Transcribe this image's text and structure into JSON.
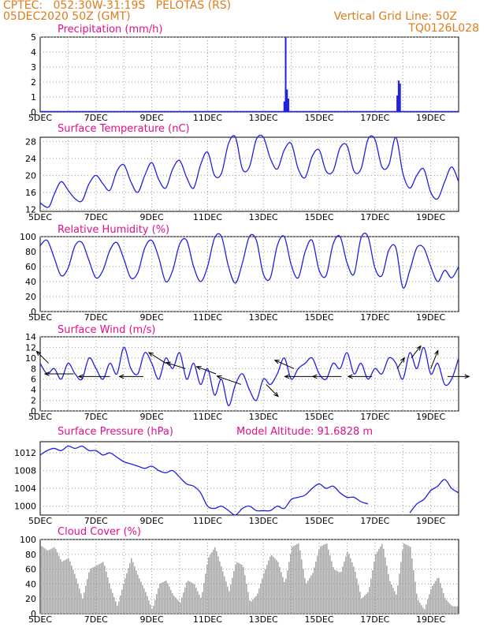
{
  "header": {
    "line1": "CPTEC:   052:30W-31:19S   PELOTAS (RS)",
    "line2": "05DEC2020 50Z (GMT)",
    "grid_label": "Vertical Grid Line: 50Z",
    "code": "TQ0126L028"
  },
  "x_ticks": [
    "5DEC",
    "7DEC",
    "9DEC",
    "11DEC",
    "13DEC",
    "15DEC",
    "17DEC",
    "19DEC"
  ],
  "colors": {
    "title": "#e0108a",
    "header": "#e07b1a",
    "line": "#2020e0",
    "bar": "#2020e0",
    "cloud": "#a9a9a9"
  },
  "chart_data": [
    {
      "id": "precip",
      "type": "bar",
      "title": "Precipitation (mm/h)",
      "ylim": [
        0,
        5
      ],
      "yticks": [
        0,
        1,
        2,
        3,
        4,
        5
      ],
      "x": [
        13.75,
        13.8,
        13.85,
        13.9,
        17.8,
        17.85,
        17.9
      ],
      "values": [
        0.7,
        5.0,
        1.5,
        0.9,
        1.1,
        2.1,
        1.9
      ]
    },
    {
      "id": "temp",
      "type": "line",
      "title": "Surface Temperature (nC)",
      "ylim": [
        11.5,
        29
      ],
      "yticks": [
        12,
        16,
        20,
        24,
        28
      ],
      "x": [
        5.0,
        5.3,
        5.5,
        5.75,
        6.0,
        6.25,
        6.5,
        6.75,
        7.0,
        7.25,
        7.5,
        7.75,
        8.0,
        8.25,
        8.5,
        8.75,
        9.0,
        9.25,
        9.5,
        9.75,
        10.0,
        10.25,
        10.5,
        10.75,
        11.0,
        11.25,
        11.5,
        11.75,
        12.0,
        12.25,
        12.5,
        12.75,
        13.0,
        13.25,
        13.5,
        13.75,
        14.0,
        14.25,
        14.5,
        14.75,
        15.0,
        15.25,
        15.5,
        15.75,
        16.0,
        16.25,
        16.5,
        16.75,
        17.0,
        17.25,
        17.5,
        17.75,
        18.0,
        18.25,
        18.5,
        18.75,
        19.0,
        19.25,
        19.5,
        19.75,
        20.0
      ],
      "values": [
        13.5,
        12.5,
        15.5,
        18.5,
        16.5,
        14.5,
        14.0,
        18.0,
        20.0,
        18.0,
        16.5,
        21.0,
        22.5,
        18.5,
        16.0,
        20.0,
        23.0,
        19.0,
        17.0,
        21.5,
        23.5,
        19.5,
        17.0,
        22.5,
        25.5,
        20.0,
        20.5,
        27.5,
        29.0,
        21.5,
        22.0,
        28.5,
        29.0,
        24.0,
        21.5,
        26.0,
        27.5,
        21.5,
        19.5,
        24.5,
        26.0,
        21.0,
        21.0,
        26.5,
        27.0,
        21.0,
        21.5,
        28.5,
        28.5,
        22.0,
        22.5,
        29.0,
        20.5,
        17.0,
        20.0,
        21.5,
        16.0,
        14.5,
        18.5,
        22.0,
        18.5
      ]
    },
    {
      "id": "rh",
      "type": "line",
      "title": "Relative Humidity (%)",
      "ylim": [
        0,
        100
      ],
      "yticks": [
        0,
        20,
        40,
        60,
        80,
        100
      ],
      "x": [
        5.0,
        5.25,
        5.5,
        5.75,
        6.0,
        6.25,
        6.5,
        6.75,
        7.0,
        7.25,
        7.5,
        7.75,
        8.0,
        8.25,
        8.5,
        8.75,
        9.0,
        9.25,
        9.5,
        9.75,
        10.0,
        10.25,
        10.5,
        10.75,
        11.0,
        11.25,
        11.5,
        11.75,
        12.0,
        12.25,
        12.5,
        12.75,
        13.0,
        13.25,
        13.5,
        13.75,
        14.0,
        14.25,
        14.5,
        14.75,
        15.0,
        15.25,
        15.5,
        15.75,
        16.0,
        16.25,
        16.5,
        16.75,
        17.0,
        17.25,
        17.5,
        17.75,
        18.0,
        18.25,
        18.5,
        18.75,
        19.0,
        19.25,
        19.5,
        19.75,
        20.0
      ],
      "values": [
        88,
        95,
        72,
        48,
        58,
        88,
        92,
        68,
        45,
        55,
        82,
        92,
        70,
        45,
        52,
        85,
        95,
        72,
        40,
        55,
        90,
        95,
        60,
        40,
        60,
        98,
        100,
        60,
        38,
        65,
        100,
        95,
        50,
        45,
        88,
        100,
        62,
        45,
        80,
        95,
        55,
        48,
        90,
        100,
        65,
        50,
        98,
        100,
        58,
        48,
        82,
        85,
        32,
        55,
        85,
        85,
        60,
        40,
        55,
        45,
        60
      ]
    },
    {
      "id": "wind",
      "type": "line",
      "title": "Surface Wind (m/s)",
      "ylim": [
        0,
        14
      ],
      "yticks": [
        0,
        2,
        4,
        6,
        8,
        10,
        12,
        14
      ],
      "x": [
        5.0,
        5.25,
        5.5,
        5.75,
        6.0,
        6.25,
        6.5,
        6.75,
        7.0,
        7.25,
        7.5,
        7.75,
        8.0,
        8.25,
        8.5,
        8.75,
        9.0,
        9.25,
        9.5,
        9.75,
        10.0,
        10.25,
        10.5,
        10.75,
        11.0,
        11.25,
        11.5,
        11.75,
        12.0,
        12.25,
        12.5,
        12.75,
        13.0,
        13.25,
        13.5,
        13.75,
        14.0,
        14.25,
        14.5,
        14.75,
        15.0,
        15.25,
        15.5,
        15.75,
        16.0,
        16.25,
        16.5,
        16.75,
        17.0,
        17.25,
        17.5,
        17.75,
        18.0,
        18.25,
        18.5,
        18.75,
        19.0,
        19.25,
        19.5,
        19.75,
        20.0
      ],
      "values": [
        9,
        7,
        8,
        6,
        9,
        7,
        6,
        10,
        8,
        6,
        9,
        7,
        12,
        8,
        7,
        11,
        9,
        6,
        10,
        8,
        11,
        6,
        9,
        5,
        8,
        3,
        6,
        1,
        5,
        7,
        4,
        2,
        6,
        5,
        7,
        10,
        6,
        8,
        9,
        10,
        7,
        6,
        9,
        8,
        11,
        7,
        9,
        6,
        8,
        7,
        10,
        9,
        6,
        11,
        8,
        12,
        7,
        9,
        5,
        6,
        10
      ],
      "arrows_note": "wind direction arrows"
    },
    {
      "id": "pres",
      "type": "line",
      "title": "Surface Pressure (hPa)",
      "extra": "Model Altitude: 91.6828 m",
      "ylim": [
        998,
        1014.5
      ],
      "yticks": [
        1000,
        1004,
        1008,
        1012
      ],
      "x": [
        5.0,
        5.25,
        5.5,
        5.75,
        6.0,
        6.25,
        6.5,
        6.75,
        7.0,
        7.25,
        7.5,
        7.75,
        8.0,
        8.25,
        8.5,
        8.75,
        9.0,
        9.25,
        9.5,
        9.75,
        10.0,
        10.25,
        10.5,
        10.75,
        11.0,
        11.25,
        11.5,
        11.75,
        12.0,
        12.25,
        12.5,
        12.75,
        13.0,
        13.25,
        13.5,
        13.75,
        14.0,
        14.25,
        14.5,
        14.75,
        15.0,
        15.25,
        15.5,
        15.75,
        16.0,
        16.25,
        16.5,
        16.75
      ],
      "values": [
        1011.5,
        1012.5,
        1013,
        1012.5,
        1013.5,
        1013,
        1013.5,
        1012.5,
        1012.5,
        1011.5,
        1012,
        1011,
        1010,
        1009.5,
        1009,
        1008.5,
        1009,
        1008,
        1007.5,
        1008,
        1006.5,
        1005,
        1004.5,
        1003,
        1000,
        999.5,
        1000,
        999,
        998,
        999.5,
        1000,
        999,
        999,
        999,
        1000,
        999.5,
        1001.5,
        1002,
        1002.5,
        1004,
        1005,
        1004,
        1004.5,
        1003,
        1002,
        1002,
        1001,
        1000.5
      ],
      "x2": [
        18.25,
        18.5,
        18.75,
        19.0,
        19.25,
        19.5,
        19.75,
        20.0
      ],
      "values2": [
        998.5,
        1000.5,
        1001.5,
        1003.5,
        1004.5,
        1006,
        1004,
        1003
      ]
    },
    {
      "id": "cloud",
      "type": "bar",
      "title": "Cloud Cover (%)",
      "ylim": [
        0,
        100
      ],
      "yticks": [
        0,
        20,
        40,
        60,
        80,
        100
      ],
      "x": [
        5.0,
        5.25,
        5.5,
        5.75,
        6.0,
        6.25,
        6.5,
        6.75,
        7.0,
        7.25,
        7.5,
        7.75,
        8.0,
        8.25,
        8.5,
        8.75,
        9.0,
        9.25,
        9.5,
        9.75,
        10.0,
        10.25,
        10.5,
        10.75,
        11.0,
        11.25,
        11.5,
        11.75,
        12.0,
        12.25,
        12.5,
        12.75,
        13.0,
        13.25,
        13.5,
        13.75,
        14.0,
        14.25,
        14.5,
        14.75,
        15.0,
        15.25,
        15.5,
        15.75,
        16.0,
        16.25,
        16.5,
        16.75,
        17.0,
        17.25,
        17.5,
        17.75,
        18.0,
        18.25,
        18.5,
        18.75,
        19.0,
        19.25,
        19.5,
        19.75
      ],
      "values": [
        92,
        85,
        90,
        70,
        75,
        50,
        20,
        60,
        65,
        70,
        35,
        10,
        45,
        75,
        50,
        30,
        5,
        40,
        45,
        25,
        15,
        45,
        40,
        20,
        75,
        90,
        60,
        30,
        70,
        65,
        15,
        25,
        55,
        80,
        70,
        40,
        90,
        95,
        40,
        55,
        90,
        95,
        60,
        55,
        85,
        60,
        20,
        30,
        80,
        95,
        45,
        25,
        95,
        90,
        20,
        5,
        35,
        50,
        20,
        10
      ]
    }
  ]
}
